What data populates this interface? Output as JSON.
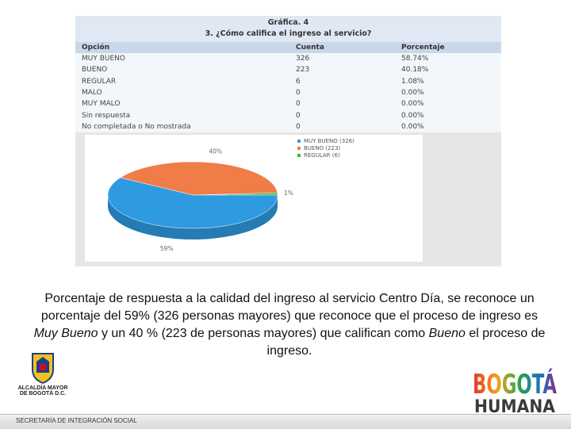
{
  "table": {
    "title": "Gráfica. 4",
    "question": "3. ¿Cómo califica el ingreso al servicio?",
    "headers": [
      "Opción",
      "Cuenta",
      "Porcentaje"
    ],
    "rows": [
      [
        "MUY BUENO",
        "326",
        "58.74%"
      ],
      [
        "BUENO",
        "223",
        "40.18%"
      ],
      [
        "REGULAR",
        "6",
        "1.08%"
      ],
      [
        "MALO",
        "0",
        "0.00%"
      ],
      [
        "MUY MALO",
        "0",
        "0.00%"
      ],
      [
        "Sin respuesta",
        "0",
        "0.00%"
      ],
      [
        "No completada o No mostrada",
        "0",
        "0.00%"
      ]
    ]
  },
  "chart_data": {
    "type": "pie",
    "categories": [
      "MUY BUENO (326)",
      "BUENO (223)",
      "REGULAR (6)"
    ],
    "values": [
      58.74,
      40.18,
      1.08
    ],
    "value_labels": [
      "59%",
      "40%",
      "1%"
    ],
    "colors": [
      "#2e9ae0",
      "#f07c48",
      "#3fb83f"
    ]
  },
  "caption": {
    "parts": [
      "Porcentaje de respuesta a la calidad del ingreso al servicio Centro Día, se reconoce un porcentaje del 59% (326 personas mayores) que reconoce que el proceso de ingreso es ",
      "Muy Bueno",
      "  y un 40 % (223 de personas mayores) que califican como ",
      "Bueno",
      " el proceso de ingreso."
    ]
  },
  "logos": {
    "alcaldia": [
      "ALCALDÍA MAYOR",
      "DE BOGOTÁ D.C."
    ],
    "bogota": [
      "BOGOTÁ",
      "HUMANA"
    ],
    "footer": "SECRETARÍA DE INTEGRACIÓN SOCIAL"
  }
}
